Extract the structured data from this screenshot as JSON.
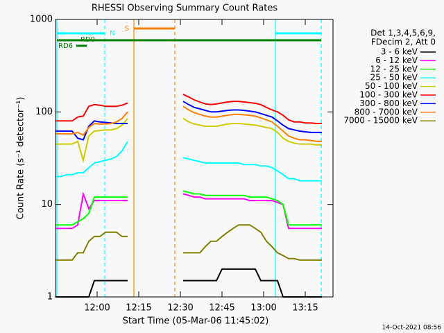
{
  "chart_data": {
    "type": "line",
    "title": "RHESSI Observing Summary Count Rates",
    "xlabel": "Start Time (05-Mar-06 11:45:02)",
    "ylabel": "Count Rate (s⁻¹ detector⁻¹)",
    "legend_header": [
      "Det 1,3,4,5,6,9,",
      "FDecim 2, Att 0"
    ],
    "footer": "14-Oct-2021 08:56",
    "log_y": true,
    "xlim": [
      0,
      100
    ],
    "xticks": [
      {
        "value": 15,
        "label": "12:00"
      },
      {
        "value": 30,
        "label": "12:15"
      },
      {
        "value": 45,
        "label": "12:30"
      },
      {
        "value": 60,
        "label": "12:45"
      },
      {
        "value": 75,
        "label": "13:00"
      },
      {
        "value": 90,
        "label": "13:15"
      }
    ],
    "ylim": [
      1,
      1000
    ],
    "yticks": [
      1,
      10,
      100,
      1000
    ],
    "x": [
      0,
      2,
      4,
      6,
      8,
      10,
      12,
      14,
      16,
      18,
      20,
      22,
      24,
      26,
      28,
      30,
      32,
      34,
      36,
      38,
      40,
      42,
      44,
      46,
      48,
      50,
      52,
      54,
      56,
      58,
      60,
      62,
      64,
      66,
      68,
      70,
      72,
      74,
      76,
      78,
      80,
      82,
      84,
      86,
      88,
      90,
      92,
      94,
      96
    ],
    "series": [
      {
        "name": "3 - 6 keV",
        "color": "#000000",
        "values": [
          1,
          1,
          1,
          1,
          1,
          1,
          1,
          1.5,
          1.5,
          1.5,
          1.5,
          1.5,
          1.5,
          1.5,
          null,
          null,
          null,
          null,
          null,
          null,
          null,
          null,
          null,
          1.5,
          1.5,
          1.5,
          1.5,
          1.5,
          1.5,
          1.5,
          2,
          2,
          2,
          2,
          2,
          2,
          2,
          1.5,
          1.5,
          1.5,
          1.5,
          1,
          1,
          1,
          1,
          1,
          1,
          1,
          1
        ]
      },
      {
        "name": "6 - 12 keV",
        "color": "#ff00ff",
        "values": [
          5.5,
          5.5,
          5.5,
          5.5,
          6,
          13,
          9,
          11,
          11,
          11,
          11,
          11,
          11,
          11,
          null,
          null,
          null,
          null,
          null,
          null,
          null,
          null,
          null,
          13,
          12.5,
          12,
          12,
          11.5,
          11.5,
          11.5,
          11.5,
          11.5,
          11.5,
          11.5,
          11.5,
          11,
          11,
          11,
          11,
          11,
          10.5,
          10,
          5.5,
          5.5,
          5.5,
          5.5,
          5.5,
          5.5,
          5.5
        ]
      },
      {
        "name": "12 - 25 keV",
        "color": "#00ff00",
        "values": [
          6,
          6,
          6,
          6,
          6.5,
          7,
          8,
          12,
          12,
          12,
          12,
          12,
          12,
          12,
          null,
          null,
          null,
          null,
          null,
          null,
          null,
          null,
          null,
          14,
          13.5,
          13,
          13,
          12.5,
          12.5,
          12.5,
          12.5,
          12.5,
          12.5,
          12.5,
          12.5,
          12,
          12,
          12,
          12,
          11.5,
          11,
          10,
          6,
          6,
          6,
          6,
          6,
          6,
          6
        ]
      },
      {
        "name": "25 - 50 keV",
        "color": "#00ffff",
        "values": [
          20,
          20,
          21,
          21,
          22,
          22,
          25,
          28,
          29,
          30,
          31,
          33,
          38,
          48,
          null,
          null,
          null,
          null,
          null,
          null,
          null,
          null,
          null,
          32,
          31,
          30,
          29,
          28,
          28,
          28,
          28,
          28,
          28,
          28,
          27,
          27,
          27,
          26,
          26,
          25,
          23,
          21,
          19,
          19,
          18,
          18,
          18,
          18,
          18
        ]
      },
      {
        "name": "50 - 100 keV",
        "color": "#cccc00",
        "values": [
          45,
          45,
          45,
          45,
          48,
          30,
          55,
          62,
          63,
          64,
          64,
          66,
          72,
          85,
          null,
          null,
          null,
          null,
          null,
          null,
          null,
          null,
          null,
          85,
          78,
          74,
          72,
          70,
          70,
          70,
          72,
          74,
          75,
          75,
          74,
          73,
          72,
          70,
          68,
          66,
          60,
          52,
          48,
          46,
          45,
          45,
          45,
          44,
          44
        ]
      },
      {
        "name": "100 - 300 keV",
        "color": "#ff0000",
        "values": [
          80,
          80,
          80,
          80,
          88,
          90,
          115,
          120,
          118,
          115,
          115,
          115,
          118,
          125,
          null,
          null,
          null,
          null,
          null,
          null,
          null,
          null,
          null,
          155,
          145,
          135,
          128,
          122,
          120,
          122,
          125,
          128,
          130,
          130,
          128,
          126,
          124,
          120,
          112,
          105,
          100,
          92,
          82,
          78,
          78,
          76,
          76,
          75,
          75
        ]
      },
      {
        "name": "300 - 800 keV",
        "color": "#0000ff",
        "values": [
          62,
          62,
          62,
          62,
          52,
          50,
          70,
          80,
          78,
          77,
          76,
          75,
          75,
          75,
          null,
          null,
          null,
          null,
          null,
          null,
          null,
          null,
          null,
          130,
          120,
          112,
          108,
          104,
          100,
          100,
          102,
          104,
          105,
          105,
          104,
          102,
          100,
          96,
          92,
          88,
          80,
          72,
          66,
          64,
          62,
          61,
          60,
          60,
          60
        ]
      },
      {
        "name": "800 - 7000 keV",
        "color": "#ff8000",
        "values": [
          58,
          58,
          58,
          58,
          60,
          56,
          68,
          75,
          74,
          74,
          75,
          78,
          85,
          100,
          null,
          null,
          null,
          null,
          null,
          null,
          null,
          null,
          null,
          115,
          105,
          98,
          94,
          90,
          88,
          88,
          90,
          92,
          94,
          94,
          93,
          92,
          90,
          86,
          82,
          78,
          70,
          62,
          55,
          52,
          50,
          50,
          49,
          48,
          48
        ]
      },
      {
        "name": "7000 - 15000 keV",
        "color": "#808000",
        "values": [
          2.5,
          2.5,
          2.5,
          2.5,
          3,
          3,
          4,
          4.5,
          4.5,
          5,
          5,
          5,
          4.5,
          4.5,
          null,
          null,
          null,
          null,
          null,
          null,
          null,
          null,
          null,
          3,
          3,
          3,
          3,
          3.5,
          4,
          4,
          4.5,
          5,
          5.5,
          6,
          6,
          6,
          5.5,
          5,
          4,
          3.5,
          3,
          2.8,
          2.6,
          2.6,
          2.5,
          2.5,
          2.5,
          2.5,
          2.5
        ]
      }
    ],
    "vlines": [
      {
        "x": 0.5,
        "color": "#00ffff",
        "dashed": false
      },
      {
        "x": 17.75,
        "color": "#00ffff",
        "dashed": true
      },
      {
        "x": 28.25,
        "color": "#ff8000",
        "dashed": false
      },
      {
        "x": 43,
        "color": "#ff8000",
        "dashed": true
      },
      {
        "x": 79.25,
        "color": "#00ffff",
        "dashed": false
      },
      {
        "x": 95.75,
        "color": "#00ffff",
        "dashed": true
      }
    ],
    "flag_bars": [
      {
        "label": "N",
        "color": "#00ffff",
        "x": [
          0.5,
          17.75
        ]
      },
      {
        "color": "#00ffff",
        "x": [
          79.25,
          95.75
        ]
      },
      {
        "label": "S",
        "color": "#ff8000",
        "x": [
          28.25,
          43
        ]
      },
      {
        "label": "RD0",
        "color": "#008000",
        "x": [
          0.5,
          95.75
        ]
      },
      {
        "label": "RD6",
        "color": "#008000",
        "x": [
          7.5,
          11.25
        ]
      }
    ]
  }
}
